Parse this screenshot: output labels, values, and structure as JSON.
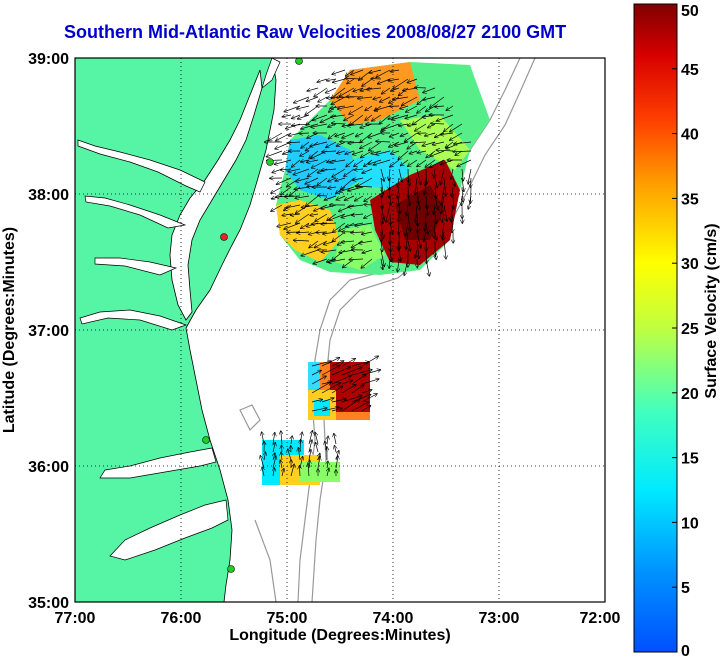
{
  "title": "Southern Mid-Atlantic Raw Velocities 2008/08/27 2100 GMT",
  "xlabel": "Longitude (Degrees:Minutes)",
  "ylabel": "Latitude (Degrees:Minutes)",
  "x_ticks": [
    "77:00",
    "76:00",
    "75:00",
    "74:00",
    "73:00",
    "72:00"
  ],
  "y_ticks": [
    "39:00",
    "38:00",
    "37:00",
    "36:00",
    "35:00"
  ],
  "colorbar": {
    "label": "Surface Velocity (cm/s)",
    "ticks": [
      "0",
      "5",
      "10",
      "15",
      "20",
      "25",
      "30",
      "35",
      "40",
      "45",
      "50"
    ],
    "range": [
      0,
      50
    ],
    "units": "cm/s"
  },
  "map_extent": {
    "lon": [
      -77,
      -72
    ],
    "lat": [
      35,
      39
    ]
  },
  "grid": true,
  "colors": {
    "land": "#55f5a5",
    "water": "#ffffff",
    "title": "#0000cc",
    "coast": "#000000",
    "bathymetry": "#999999",
    "station_green": "#22cc22",
    "station_red": "#ee2222"
  }
}
